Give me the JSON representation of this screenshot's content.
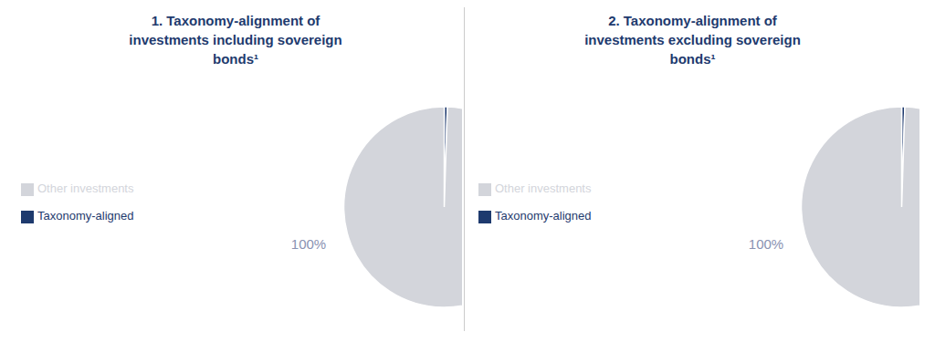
{
  "chart_data": [
    {
      "type": "pie",
      "title": "1. Taxonomy-alignment of\ninvestments including sovereign\nbonds¹",
      "categories": [
        "Taxonomy-aligned",
        "Other investments"
      ],
      "values": [
        0.5,
        99.5
      ],
      "colors": [
        "#1e3a6e",
        "#d3d5db"
      ],
      "annotations": [
        "100%"
      ],
      "legend": "left"
    },
    {
      "type": "pie",
      "title": "2. Taxonomy-alignment of\ninvestments excluding sovereign\nbonds¹",
      "categories": [
        "Taxonomy-aligned",
        "Other investments"
      ],
      "values": [
        0.5,
        99.5
      ],
      "colors": [
        "#1e3a6e",
        "#d3d5db"
      ],
      "annotations": [
        "100%"
      ],
      "legend": "left"
    }
  ]
}
